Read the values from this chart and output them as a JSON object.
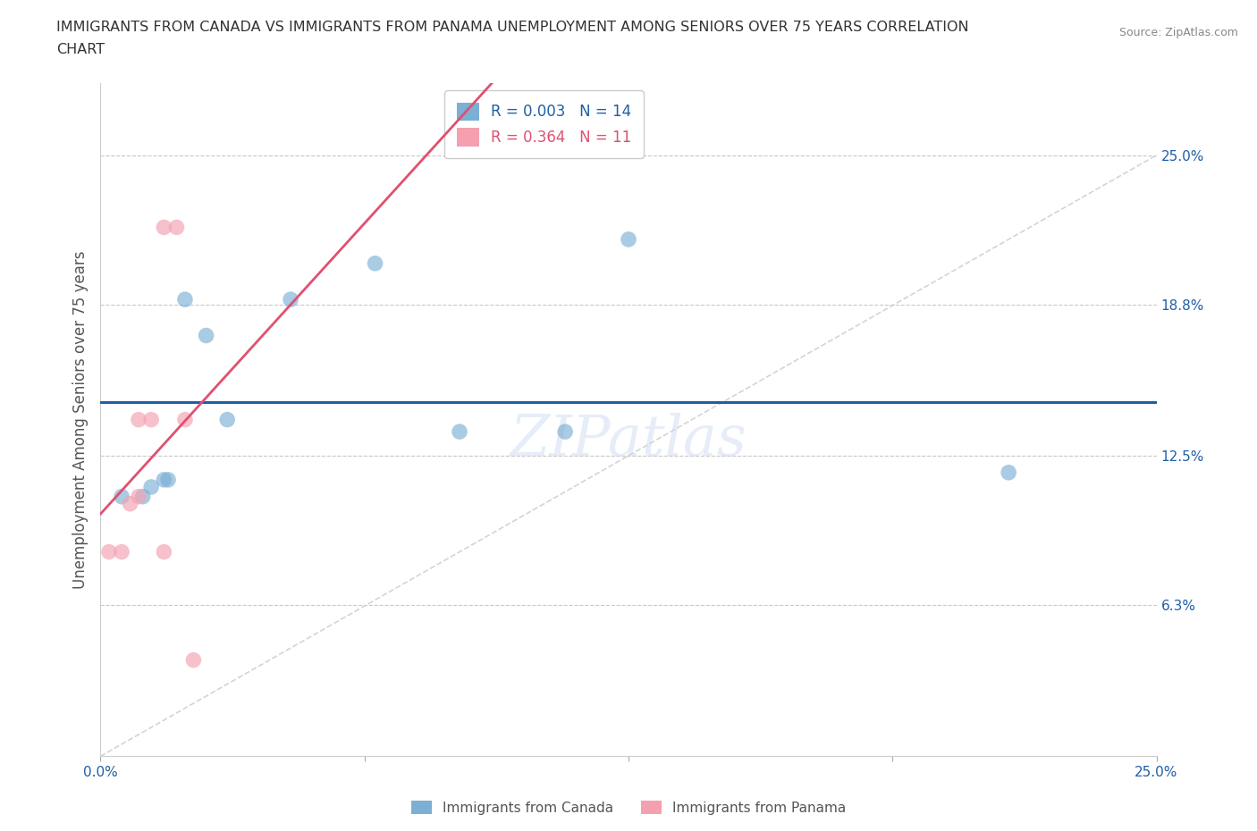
{
  "title_line1": "IMMIGRANTS FROM CANADA VS IMMIGRANTS FROM PANAMA UNEMPLOYMENT AMONG SENIORS OVER 75 YEARS CORRELATION",
  "title_line2": "CHART",
  "source": "Source: ZipAtlas.com",
  "ylabel": "Unemployment Among Seniors over 75 years",
  "xlim": [
    0.0,
    0.25
  ],
  "ylim": [
    -0.01,
    0.28
  ],
  "plot_ylim": [
    0.0,
    0.28
  ],
  "ytick_vals": [
    0.063,
    0.125,
    0.188,
    0.25
  ],
  "ytick_labels": [
    "6.3%",
    "12.5%",
    "18.8%",
    "25.0%"
  ],
  "xtick_vals": [
    0.0,
    0.0625,
    0.125,
    0.1875,
    0.25
  ],
  "xtick_labels": [
    "0.0%",
    "",
    "",
    "",
    "25.0%"
  ],
  "canada_x": [
    0.005,
    0.01,
    0.012,
    0.015,
    0.016,
    0.02,
    0.025,
    0.03,
    0.045,
    0.065,
    0.085,
    0.11,
    0.125,
    0.215
  ],
  "canada_y": [
    0.108,
    0.108,
    0.112,
    0.115,
    0.115,
    0.19,
    0.175,
    0.14,
    0.19,
    0.205,
    0.135,
    0.135,
    0.215,
    0.118
  ],
  "panama_x": [
    0.002,
    0.005,
    0.007,
    0.009,
    0.009,
    0.012,
    0.015,
    0.015,
    0.018,
    0.02,
    0.022
  ],
  "panama_y": [
    0.085,
    0.085,
    0.105,
    0.108,
    0.14,
    0.14,
    0.085,
    0.22,
    0.22,
    0.14,
    0.04
  ],
  "canada_color": "#7bafd4",
  "panama_color": "#f4a0b0",
  "canada_trend_color": "#1f5fa6",
  "panama_trend_color": "#e05070",
  "canada_r": "0.003",
  "canada_n": "14",
  "panama_r": "0.364",
  "panama_n": "11",
  "watermark": "ZIPatlas",
  "legend_bottom_labels": [
    "Immigrants from Canada",
    "Immigrants from Panama"
  ],
  "marker_size": 160,
  "grid_color": "#c8c8c8",
  "diagonal_color": "#d0d0d0"
}
